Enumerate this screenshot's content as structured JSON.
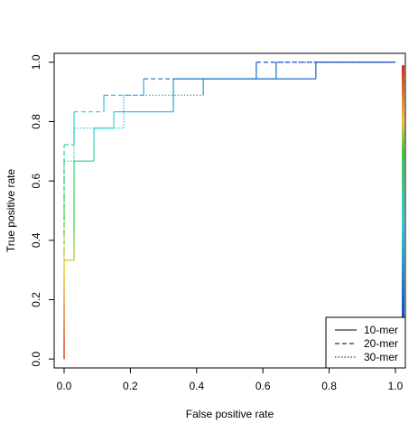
{
  "chart_data": {
    "type": "line",
    "title": "",
    "xlabel": "False positive rate",
    "ylabel": "True positive rate",
    "xlim": [
      -0.03,
      1.03
    ],
    "ylim": [
      -0.03,
      1.03
    ],
    "x_ticks": [
      0.0,
      0.2,
      0.4,
      0.6,
      0.8,
      1.0
    ],
    "x_tick_labels": [
      "0.0",
      "0.2",
      "0.4",
      "0.6",
      "0.8",
      "1.0"
    ],
    "y_ticks": [
      0.0,
      0.2,
      0.4,
      0.6,
      0.8,
      1.0
    ],
    "y_tick_labels": [
      "0.0",
      "0.2",
      "0.4",
      "0.6",
      "0.8",
      "1.0"
    ],
    "grid": false,
    "legend_position": "bottom-right",
    "colorized": true,
    "colorbar": "right",
    "series": [
      {
        "name": "10-mer",
        "line_style": "solid",
        "points": [
          [
            0.0,
            0.0
          ],
          [
            0.0,
            0.333
          ],
          [
            0.03,
            0.333
          ],
          [
            0.03,
            0.667
          ],
          [
            0.09,
            0.667
          ],
          [
            0.09,
            0.778
          ],
          [
            0.15,
            0.778
          ],
          [
            0.15,
            0.833
          ],
          [
            0.33,
            0.833
          ],
          [
            0.33,
            0.944
          ],
          [
            0.76,
            0.944
          ],
          [
            0.76,
            1.0
          ],
          [
            1.0,
            1.0
          ]
        ]
      },
      {
        "name": "20-mer",
        "line_style": "dashed",
        "points": [
          [
            0.0,
            0.0
          ],
          [
            0.0,
            0.722
          ],
          [
            0.03,
            0.722
          ],
          [
            0.03,
            0.833
          ],
          [
            0.12,
            0.833
          ],
          [
            0.12,
            0.889
          ],
          [
            0.24,
            0.889
          ],
          [
            0.24,
            0.944
          ],
          [
            0.58,
            0.944
          ],
          [
            0.58,
            1.0
          ],
          [
            1.0,
            1.0
          ]
        ]
      },
      {
        "name": "30-mer",
        "line_style": "dotted",
        "points": [
          [
            0.0,
            0.0
          ],
          [
            0.0,
            0.667
          ],
          [
            0.03,
            0.667
          ],
          [
            0.03,
            0.778
          ],
          [
            0.18,
            0.778
          ],
          [
            0.18,
            0.889
          ],
          [
            0.42,
            0.889
          ],
          [
            0.42,
            0.944
          ],
          [
            0.64,
            0.944
          ],
          [
            0.64,
            1.0
          ],
          [
            1.0,
            1.0
          ]
        ]
      }
    ]
  }
}
